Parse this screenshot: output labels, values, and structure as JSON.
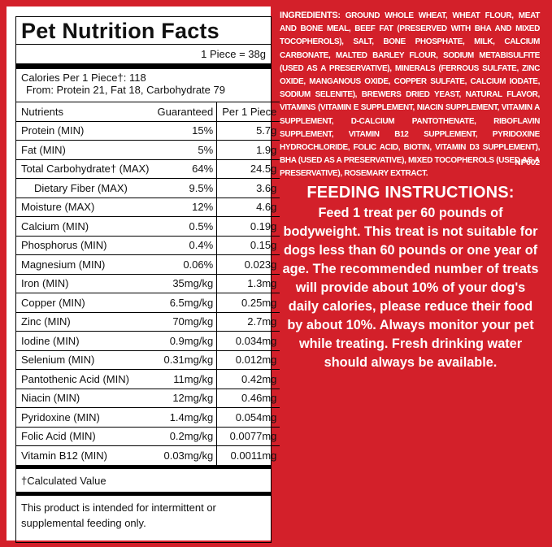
{
  "nutrition": {
    "title": "Pet Nutrition Facts",
    "serving": "1 Piece = 38g",
    "calories": "Calories Per 1 Piece†: 118",
    "calories_from": "From: Protein 21, Fat 18, Carbohydrate 79",
    "headers": [
      "Nutrients",
      "Guaranteed",
      "Per 1 Piece"
    ],
    "rows": [
      [
        "Protein (MIN)",
        "15%",
        "5.7g"
      ],
      [
        "Fat (MIN)",
        "5%",
        "1.9g"
      ],
      [
        "Total Carbohydrate† (MAX)",
        "64%",
        "24.5g"
      ],
      [
        "Dietary Fiber (MAX)",
        "9.5%",
        "3.6g"
      ],
      [
        "Moisture (MAX)",
        "12%",
        "4.6g"
      ],
      [
        "Calcium (MIN)",
        "0.5%",
        "0.19g"
      ],
      [
        "Phosphorus (MIN)",
        "0.4%",
        "0.15g"
      ],
      [
        "Magnesium (MIN)",
        "0.06%",
        "0.023g"
      ],
      [
        "Iron (MIN)",
        "35mg/kg",
        "1.3mg"
      ],
      [
        "Copper (MIN)",
        "6.5mg/kg",
        "0.25mg"
      ],
      [
        "Zinc (MIN)",
        "70mg/kg",
        "2.7mg"
      ],
      [
        "Iodine (MIN)",
        "0.9mg/kg",
        "0.034mg"
      ],
      [
        "Selenium (MIN)",
        "0.31mg/kg",
        "0.012mg"
      ],
      [
        "Pantothenic Acid (MIN)",
        "11mg/kg",
        "0.42mg"
      ],
      [
        "Niacin (MIN)",
        "12mg/kg",
        "0.46mg"
      ],
      [
        "Pyridoxine (MIN)",
        "1.4mg/kg",
        "0.054mg"
      ],
      [
        "Folic Acid (MIN)",
        "0.2mg/kg",
        "0.0077mg"
      ],
      [
        "Vitamin B12 (MIN)",
        "0.03mg/kg",
        "0.0011mg"
      ]
    ],
    "footnote": "†Calculated Value",
    "note": "This product is intended for intermittent or supplemental feeding only."
  },
  "ingredients": {
    "label": "INGREDIENTS:",
    "text": "GROUND WHOLE WHEAT, WHEAT FLOUR, MEAT AND BONE MEAL, BEEF FAT (PRESERVED WITH BHA AND MIXED TOCOPHEROLS), SALT, BONE PHOSPHATE, MILK, CALCIUM CARBONATE, MALTED BARLEY FLOUR, SODIUM METABISULFITE (USED AS A PRESERVATIVE), MINERALS (FERROUS SULFATE, ZINC OXIDE, MANGANOUS OXIDE, COPPER SULFATE, CALCIUM IODATE, SODIUM SELENITE), BREWERS DRIED YEAST, NATURAL FLAVOR, VITAMINS (VITAMIN E SUPPLEMENT, NIACIN SUPPLEMENT, VITAMIN A SUPPLEMENT, D-CALCIUM PANTOTHENATE, RIBOFLAVIN SUPPLEMENT, VITAMIN B12 SUPPLEMENT, PYRIDOXINE HYDROCHLORIDE, FOLIC ACID, BIOTIN, VITAMIN D3 SUPPLEMENT), BHA (USED AS A PRESERVATIVE), MIXED TOCOPHEROLS (USED AS A PRESERVATIVE), ROSEMARY EXTRACT.",
    "code": "NP002"
  },
  "feeding": {
    "title": "FEEDING INSTRUCTIONS:",
    "text": "Feed 1 treat per 60 pounds of bodyweight. This treat is not suitable for dogs less than 60 pounds or one year of age. The recommended number of treats will provide about 10% of your dog's daily calories, please reduce their food by about 10%. Always monitor your pet while treating. Fresh drinking water should always be available."
  }
}
